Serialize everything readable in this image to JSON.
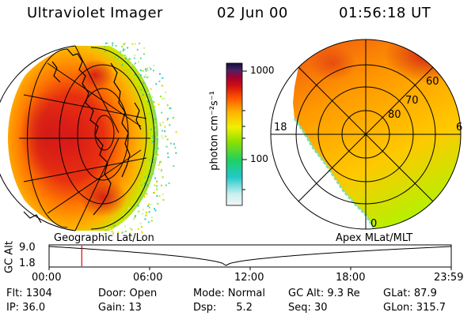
{
  "header": {
    "instrument": "Ultraviolet Imager",
    "date": "02 Jun 00",
    "time": "01:56:18 UT"
  },
  "colorbar": {
    "unit_label": "photon cm⁻²s⁻¹",
    "tick_1000": "1000",
    "tick_100": "100"
  },
  "polar_labels": {
    "mlat_60": "60",
    "mlat_70": "70",
    "mlat_80": "80",
    "mlt_18": "18",
    "mlt_6": "6",
    "mlt_0": "0"
  },
  "timeline": {
    "left_caption": "Geographic Lat/Lon",
    "right_caption": "Apex MLat/MLT",
    "axis_label": "GC Alt",
    "y_top": "9.0",
    "y_bottom": "1.8",
    "ticks": [
      "00:00",
      "06:00",
      "12:00",
      "18:00",
      "23:59"
    ],
    "marker_fraction": 0.0813,
    "marker_color": "#e00000"
  },
  "status": {
    "flt": "Flt: 1304",
    "ip": "IP: 36.0",
    "door": "Door: Open",
    "gain": "Gain: 13",
    "mode": "Mode: Normal",
    "dsp": "Dsp:      5.2",
    "gc_alt": "GC Alt: 9.3 Re",
    "seq": "Seq: 30",
    "glat": "GLat:  87.9",
    "glon": "GLon: 315.7"
  },
  "colors": {
    "aurora_high": "#d81818",
    "aurora_mid": "#ff9a00",
    "aurora_low": "#a8e000"
  }
}
